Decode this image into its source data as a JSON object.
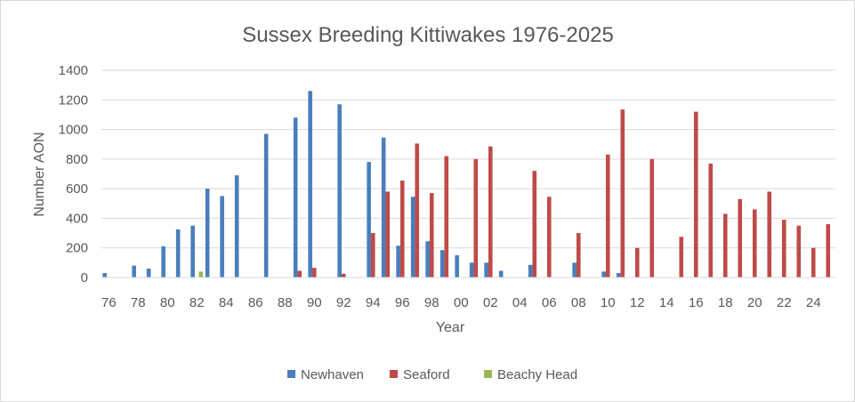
{
  "chart_data": {
    "type": "bar",
    "title": "Sussex Breeding Kittiwakes 1976-2025",
    "xlabel": "Year",
    "ylabel": "Number AON",
    "ylim": [
      0,
      1400
    ],
    "yticks": [
      0,
      200,
      400,
      600,
      800,
      1000,
      1200,
      1400
    ],
    "grid": true,
    "legend_position": "bottom",
    "categories": [
      "76",
      "77",
      "78",
      "79",
      "80",
      "81",
      "82",
      "83",
      "84",
      "85",
      "86",
      "87",
      "88",
      "89",
      "90",
      "91",
      "92",
      "93",
      "94",
      "95",
      "96",
      "97",
      "98",
      "99",
      "00",
      "01",
      "02",
      "03",
      "04",
      "05",
      "06",
      "07",
      "08",
      "09",
      "10",
      "11",
      "12",
      "13",
      "14",
      "15",
      "16",
      "17",
      "18",
      "19",
      "20",
      "21",
      "22",
      "23",
      "24",
      "25"
    ],
    "x_tick_labels": [
      "76",
      "78",
      "80",
      "82",
      "84",
      "86",
      "88",
      "90",
      "92",
      "94",
      "96",
      "98",
      "00",
      "02",
      "04",
      "06",
      "08",
      "10",
      "12",
      "14",
      "16",
      "18",
      "20",
      "22",
      "24"
    ],
    "series": [
      {
        "name": "Newhaven",
        "color": "#4a7ebb",
        "values": [
          30,
          0,
          80,
          60,
          210,
          325,
          350,
          600,
          550,
          690,
          0,
          970,
          0,
          1080,
          1260,
          0,
          1170,
          0,
          780,
          945,
          215,
          545,
          245,
          185,
          150,
          100,
          100,
          45,
          0,
          85,
          0,
          0,
          100,
          0,
          40,
          30,
          0,
          0,
          0,
          0,
          0,
          0,
          0,
          0,
          0,
          0,
          0,
          0,
          0,
          0
        ]
      },
      {
        "name": "Seaford",
        "color": "#be4b48",
        "values": [
          0,
          0,
          0,
          0,
          0,
          0,
          0,
          0,
          0,
          0,
          0,
          0,
          0,
          45,
          65,
          0,
          25,
          0,
          300,
          580,
          655,
          905,
          570,
          820,
          0,
          800,
          885,
          0,
          0,
          720,
          545,
          0,
          300,
          0,
          830,
          1135,
          200,
          800,
          0,
          275,
          1120,
          770,
          430,
          530,
          460,
          580,
          390,
          350,
          200,
          360
        ]
      },
      {
        "name": "Beachy Head",
        "color": "#98b954",
        "values": [
          0,
          0,
          0,
          0,
          0,
          0,
          40,
          0,
          0,
          0,
          0,
          0,
          0,
          0,
          0,
          0,
          0,
          0,
          0,
          0,
          0,
          0,
          0,
          0,
          0,
          0,
          0,
          0,
          0,
          0,
          0,
          0,
          0,
          0,
          0,
          0,
          0,
          0,
          0,
          0,
          0,
          0,
          0,
          0,
          0,
          0,
          0,
          0,
          0,
          0
        ]
      }
    ]
  }
}
